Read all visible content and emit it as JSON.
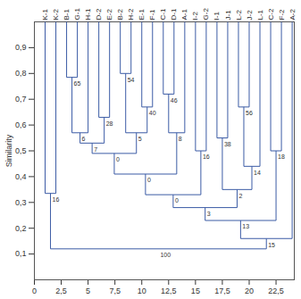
{
  "chart_data": {
    "type": "dendrogram",
    "ylabel": "Similarity",
    "leaves": [
      "K-1",
      "K-2",
      "B-1",
      "G-1",
      "H-1",
      "D-2",
      "E-2",
      "B-2",
      "H-2",
      "E-1",
      "F-1",
      "C-1",
      "D-1",
      "A-1",
      "I-2",
      "G-2",
      "I-1",
      "J-1",
      "L-2",
      "J-2",
      "L-1",
      "C-2",
      "F-2",
      "A-2"
    ],
    "merges": [
      {
        "children": [
          "K-1",
          "K-2"
        ],
        "height": 0.335,
        "label": 16
      },
      {
        "children": [
          "B-1",
          "G-1"
        ],
        "height": 0.785,
        "label": 65
      },
      {
        "children": [
          1,
          "H-1"
        ],
        "height": 0.57,
        "label": 6
      },
      {
        "children": [
          "D-2",
          "E-2"
        ],
        "height": 0.63,
        "label": 28
      },
      {
        "children": [
          2,
          3
        ],
        "height": 0.53,
        "label": 7
      },
      {
        "children": [
          "B-2",
          "H-2"
        ],
        "height": 0.8,
        "label": 54
      },
      {
        "children": [
          "E-1",
          "F-1"
        ],
        "height": 0.67,
        "label": 40
      },
      {
        "children": [
          5,
          6
        ],
        "height": 0.57,
        "label": 5
      },
      {
        "children": [
          4,
          7
        ],
        "height": 0.49,
        "label": 0
      },
      {
        "children": [
          "C-1",
          "D-1"
        ],
        "height": 0.72,
        "label": 46
      },
      {
        "children": [
          9,
          "A-1"
        ],
        "height": 0.57,
        "label": 8
      },
      {
        "children": [
          8,
          10
        ],
        "height": 0.41,
        "label": 0
      },
      {
        "children": [
          "I-2",
          "G-2"
        ],
        "height": 0.5,
        "label": 16
      },
      {
        "children": [
          11,
          12
        ],
        "height": 0.33,
        "label": 0
      },
      {
        "children": [
          "I-1",
          "J-1"
        ],
        "height": 0.55,
        "label": 38
      },
      {
        "children": [
          "L-2",
          "J-2"
        ],
        "height": 0.67,
        "label": 56
      },
      {
        "children": [
          15,
          "L-1"
        ],
        "height": 0.44,
        "label": 14
      },
      {
        "children": [
          14,
          16
        ],
        "height": 0.35,
        "label": 2
      },
      {
        "children": [
          13,
          17
        ],
        "height": 0.28,
        "label": 3
      },
      {
        "children": [
          "C-2",
          "F-2"
        ],
        "height": 0.5,
        "label": 18
      },
      {
        "children": [
          18,
          19
        ],
        "height": 0.23,
        "label": 13
      },
      {
        "children": [
          20,
          "A-2"
        ],
        "height": 0.16,
        "label": 15
      },
      {
        "children": [
          0,
          21
        ],
        "height": 0.12,
        "label": 100
      }
    ],
    "color": "#3b5ba5",
    "xlim": [
      0,
      24.2
    ],
    "ylim": [
      0,
      1
    ],
    "xticks": [
      0,
      {
        "value": 2.5,
        "label": "2,5"
      },
      5,
      {
        "value": 7.5,
        "label": "7,5"
      },
      10,
      {
        "value": 12.5,
        "label": "12,5"
      },
      15,
      {
        "value": 17.5,
        "label": "17,5"
      },
      20,
      {
        "value": 22.5,
        "label": "22,5"
      }
    ],
    "yticks": [
      {
        "value": 0.1,
        "label": "0,1"
      },
      {
        "value": 0.2,
        "label": "0,2"
      },
      {
        "value": 0.3,
        "label": "0,3"
      },
      {
        "value": 0.4,
        "label": "0,4"
      },
      {
        "value": 0.5,
        "label": "0,5"
      },
      {
        "value": 0.6,
        "label": "0,6"
      },
      {
        "value": 0.7,
        "label": "0,7"
      },
      {
        "value": 0.8,
        "label": "0,8"
      },
      {
        "value": 0.9,
        "label": "0,9"
      }
    ]
  }
}
